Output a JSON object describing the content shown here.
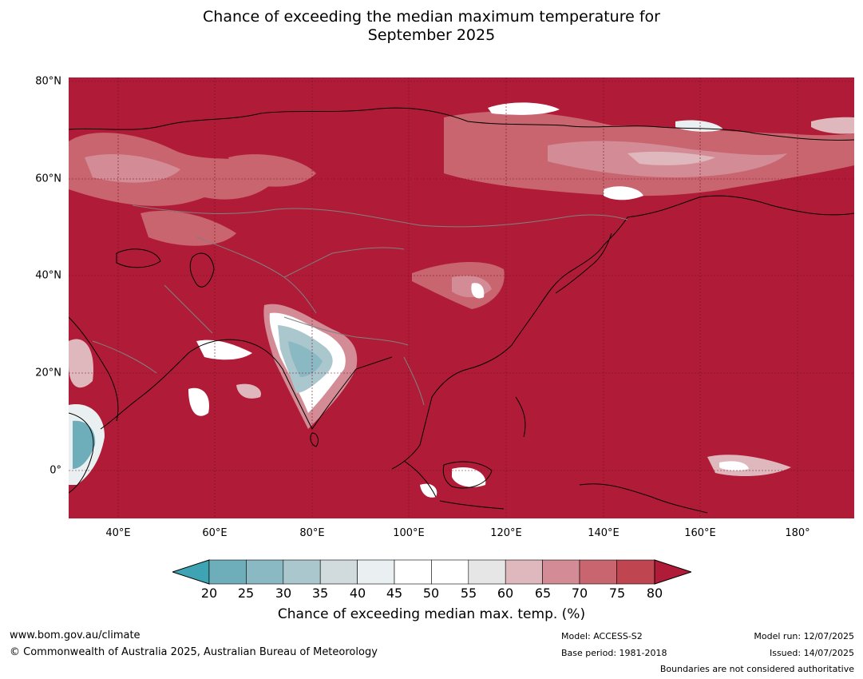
{
  "title": {
    "line1": "Chance of exceeding the median maximum temperature for",
    "line2": "September 2025"
  },
  "map": {
    "background_color": "#b01c37",
    "lat_labels": [
      "80°N",
      "60°N",
      "40°N",
      "20°N",
      "0°"
    ],
    "lon_labels": [
      "40°E",
      "60°E",
      "80°E",
      "100°E",
      "120°E",
      "140°E",
      "160°E",
      "180°"
    ]
  },
  "colorbar": {
    "ticks": [
      "20",
      "25",
      "30",
      "35",
      "40",
      "45",
      "50",
      "55",
      "60",
      "65",
      "70",
      "75",
      "80"
    ],
    "colors": [
      "#3ea3b2",
      "#6eaebb",
      "#8ab8c3",
      "#a9c7cc",
      "#d1dadd",
      "#eaf0f1",
      "#ffffff",
      "#ffffff",
      "#e6e6e6",
      "#dfb8bd",
      "#d38c96",
      "#c8656f",
      "#bf4550",
      "#b01c37"
    ],
    "label": "Chance of exceeding median max. temp. (%)"
  },
  "footer": {
    "website": "www.bom.gov.au/climate",
    "copyright": "© Commonwealth of Australia 2025, Australian Bureau of Meteorology",
    "model": "Model: ACCESS-S2",
    "base_period": "Base period: 1981-2018",
    "model_run": "Model run: 12/07/2025",
    "issued": "Issued: 14/07/2025",
    "disclaimer": "Boundaries are not considered authoritative"
  }
}
